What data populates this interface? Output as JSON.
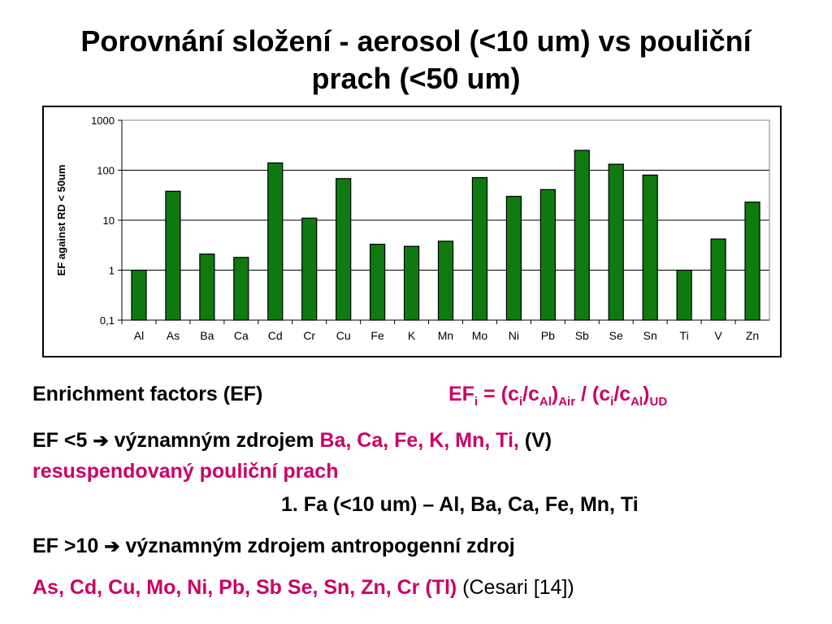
{
  "slide": {
    "title_line1": "Porovnání složení - aerosol (<10 um) vs pouliční",
    "title_line2": "prach (<50 um)"
  },
  "chart_data": {
    "type": "bar",
    "scale": "log",
    "ylabel": "EF against RD < 50um",
    "ylim": [
      0.1,
      1000
    ],
    "yticks": [
      "0,1",
      "1",
      "10",
      "100",
      "1000"
    ],
    "grid": true,
    "bar_color": "#0f7a10",
    "categories": [
      "Al",
      "As",
      "Ba",
      "Ca",
      "Cd",
      "Cr",
      "Cu",
      "Fe",
      "K",
      "Mn",
      "Mo",
      "Ni",
      "Pb",
      "Sb",
      "Se",
      "Sn",
      "Ti",
      "V",
      "Zn"
    ],
    "values": [
      1,
      38,
      2.1,
      1.8,
      140,
      11,
      68,
      3.3,
      3,
      3.8,
      71,
      30,
      41,
      250,
      132,
      80,
      1,
      4.2,
      23
    ]
  },
  "text": {
    "ef_heading": "Enrichment factors (EF)",
    "formula": {
      "ef": "EF",
      "i_sub": "i",
      "eq_open": " = (c",
      "ci_sub": "i",
      "slash_c": "/c",
      "al_sub": "Al",
      "close_air": ")",
      "air_sub": "Air",
      "mid": " / (c",
      "ci_sub2": "i",
      "slash_c2": "/c",
      "al_sub2": "Al",
      "close_ud": ")",
      "ud_sub": "UD"
    },
    "line1_prefix": "EF <5 ",
    "arrow_icon": "➔",
    "line1_middle": " významným zdrojem ",
    "line1_elements": "Ba, Ca, Fe, K, Mn, Ti,",
    "line1_suffix": " (V)",
    "line2": "resuspendovaný pouliční prach",
    "line3": "1. Fa (<10 um) – Al, Ba, Ca, Fe, Mn, Ti",
    "line4_prefix": "EF >10 ",
    "line4_suffix": " významným zdrojem antropogenní zdroj",
    "line5_elements": "As, Cd, Cu, Mo, Ni, Pb, Sb Se, Sn, Zn, Cr (Tl)",
    "line5_citation": " (Cesari [14])"
  }
}
